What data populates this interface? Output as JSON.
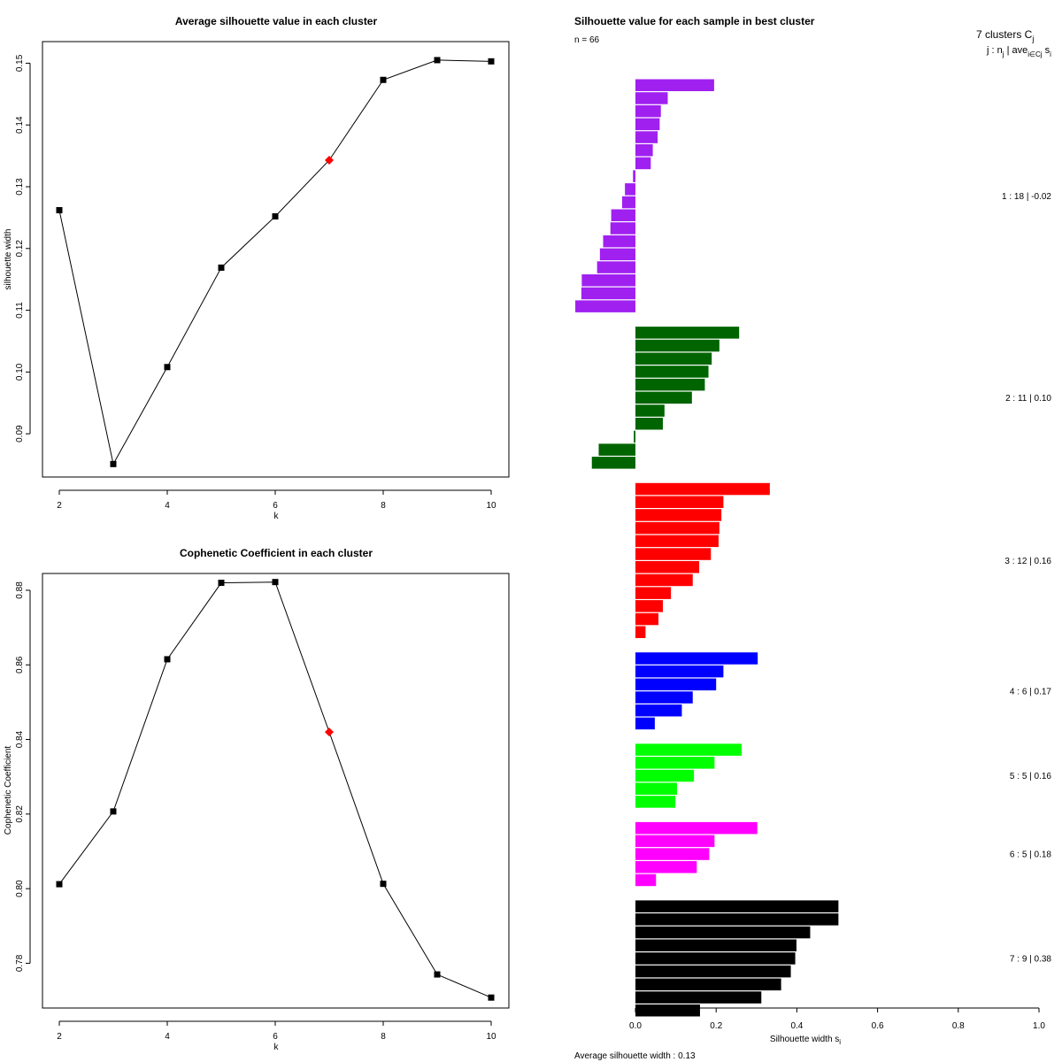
{
  "chart_data": [
    {
      "type": "line",
      "title": "Average silhouette value in each cluster",
      "xlabel": "k",
      "ylabel": "silhouette width",
      "x": [
        2,
        3,
        4,
        5,
        6,
        7,
        8,
        9,
        10
      ],
      "values": [
        0.1262,
        0.0851,
        0.1008,
        0.1169,
        0.1252,
        0.1343,
        0.1473,
        0.1505,
        0.1503
      ],
      "highlight_x": 7,
      "xlim": [
        2,
        10
      ],
      "ylim": [
        0.083,
        0.1535
      ],
      "xticks": [
        2,
        4,
        6,
        8,
        10
      ],
      "xtick_labels": [
        "2",
        "4",
        "6",
        "8",
        "10"
      ],
      "yticks": [
        0.09,
        0.1,
        0.11,
        0.12,
        0.13,
        0.14,
        0.15
      ],
      "ytick_labels": [
        "0.09",
        "0.10",
        "0.11",
        "0.12",
        "0.13",
        "0.14",
        "0.15"
      ]
    },
    {
      "type": "line",
      "title": "Cophenetic Coefficient in each cluster",
      "xlabel": "k",
      "ylabel": "Cophenetic Coefficient",
      "x": [
        2,
        3,
        4,
        5,
        6,
        7,
        8,
        9,
        10
      ],
      "values": [
        0.8012,
        0.8207,
        0.8615,
        0.882,
        0.8822,
        0.842,
        0.8013,
        0.777,
        0.7708
      ],
      "highlight_x": 7,
      "xlim": [
        2,
        10
      ],
      "ylim": [
        0.768,
        0.8845
      ],
      "xticks": [
        2,
        4,
        6,
        8,
        10
      ],
      "xtick_labels": [
        "2",
        "4",
        "6",
        "8",
        "10"
      ],
      "yticks": [
        0.78,
        0.8,
        0.82,
        0.84,
        0.86,
        0.88
      ],
      "ytick_labels": [
        "0.78",
        "0.80",
        "0.82",
        "0.84",
        "0.86",
        "0.88"
      ]
    },
    {
      "type": "bar",
      "orientation": "horizontal",
      "title": "Silhouette value for each sample in best cluster",
      "n_label": "n = 66",
      "header_line1": "7 clusters  C",
      "header_line1_sub": "j",
      "header_line2": "j :  n",
      "header_line2_sub": "j",
      "header_line2_rest": " | ave",
      "header_line2_sub2": "i∈Cj",
      "header_line2_tail": " s",
      "header_line2_sub3": "i",
      "xlabel": "Silhouette width s",
      "xlabel_sub": "i",
      "footer": "Average silhouette width :  0.13",
      "xlim": [
        0.0,
        1.0
      ],
      "xticks": [
        0.0,
        0.2,
        0.4,
        0.6,
        0.8,
        1.0
      ],
      "xtick_labels": [
        "0.0",
        "0.2",
        "0.4",
        "0.6",
        "0.8",
        "1.0"
      ],
      "clusters": [
        {
          "label": "1 :  18  |  -0.02",
          "color": "#a020f0",
          "values": [
            0.195,
            0.08,
            0.063,
            0.06,
            0.055,
            0.043,
            0.038,
            -0.006,
            -0.026,
            -0.033,
            -0.06,
            -0.062,
            -0.08,
            -0.088,
            -0.095,
            -0.133,
            -0.134,
            -0.149
          ]
        },
        {
          "label": "2 :  11  |  0.10",
          "color": "#006400",
          "values": [
            0.257,
            0.208,
            0.189,
            0.181,
            0.172,
            0.14,
            0.072,
            0.068,
            -0.004,
            -0.091,
            -0.108
          ]
        },
        {
          "label": "3 :  12  |  0.16",
          "color": "#ff0000",
          "values": [
            0.333,
            0.218,
            0.213,
            0.208,
            0.206,
            0.187,
            0.158,
            0.142,
            0.088,
            0.068,
            0.057,
            0.025
          ]
        },
        {
          "label": "4 :  6  |  0.17",
          "color": "#0000ff",
          "values": [
            0.303,
            0.218,
            0.2,
            0.142,
            0.115,
            0.048
          ]
        },
        {
          "label": "5 :  5  |  0.16",
          "color": "#00ff00",
          "values": [
            0.263,
            0.196,
            0.145,
            0.103,
            0.099
          ]
        },
        {
          "label": "6 :  5  |  0.18",
          "color": "#ff00ff",
          "values": [
            0.302,
            0.196,
            0.183,
            0.152,
            0.051
          ]
        },
        {
          "label": "7 :  9  |  0.38",
          "color": "#000000",
          "values": [
            0.503,
            0.503,
            0.433,
            0.399,
            0.396,
            0.385,
            0.361,
            0.312,
            0.16
          ]
        }
      ]
    }
  ]
}
